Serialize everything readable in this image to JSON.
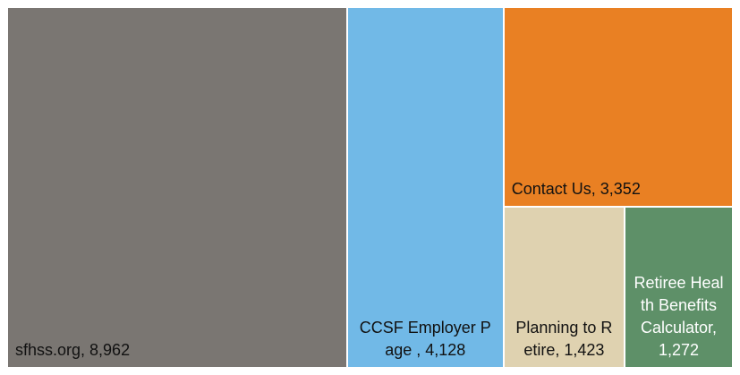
{
  "chart_data": {
    "type": "treemap",
    "categories": [
      "sfhss.org",
      "CCSF Employer Page ",
      "Contact Us",
      "Planning to Retire",
      "Retiree Health Benefits Calculator"
    ],
    "values": [
      8962,
      4128,
      3352,
      1423,
      1272
    ],
    "value_labels": [
      ", 8,962",
      ", 4,128",
      ", 3,352",
      ", 1,423",
      ", 1,272"
    ],
    "colors": [
      "#7a7672",
      "#71b9e7",
      "#e98023",
      "#dfd2b0",
      "#5e9068"
    ],
    "label_colors": [
      "#111111",
      "#111111",
      "#111111",
      "#111111",
      "#ffffff"
    ]
  }
}
